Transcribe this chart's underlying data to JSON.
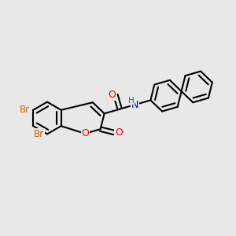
{
  "background_color": "#e8e8e8",
  "bond_color": "#000000",
  "bond_width": 1.5,
  "atom_colors": {
    "Br": "#cc6600",
    "O": "#ff0000",
    "N": "#0000cc",
    "H": "#008080",
    "C": "#000000"
  },
  "font_size": 8.0,
  "BL": 0.068
}
